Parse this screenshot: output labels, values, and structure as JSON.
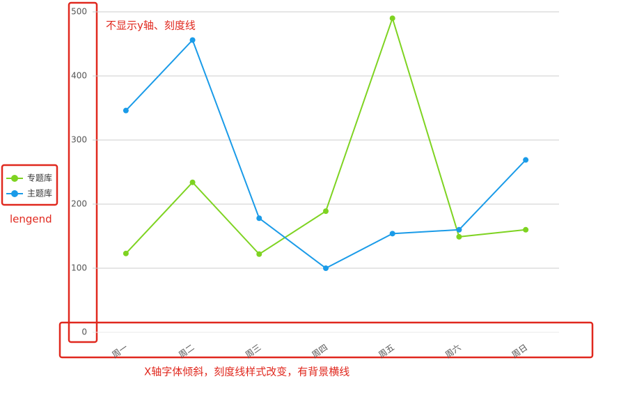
{
  "chart_data": {
    "type": "line",
    "categories": [
      "周一",
      "周二",
      "周三",
      "周四",
      "周五",
      "周六",
      "周日"
    ],
    "series": [
      {
        "name": "专题库",
        "color": "#7ed321",
        "values": [
          123,
          234,
          122,
          189,
          490,
          149,
          160
        ]
      },
      {
        "name": "主题库",
        "color": "#1a9be8",
        "values": [
          346,
          456,
          178,
          100,
          154,
          160,
          269
        ]
      }
    ],
    "ylim": [
      0,
      500
    ],
    "yticks": [
      0,
      100,
      200,
      300,
      400,
      500
    ],
    "grid": true,
    "legend": "left",
    "annotations": [
      "不显示y轴、刻度线",
      "lengend",
      "X轴字体倾斜，刻度线样式改变，有背景横线"
    ]
  }
}
